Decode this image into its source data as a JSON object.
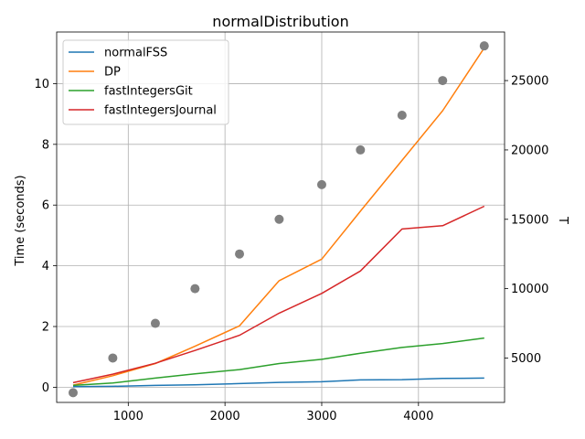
{
  "chart_data": {
    "type": "line",
    "title": "normalDistribution",
    "ylabel": "Time (seconds)",
    "y2label": "T",
    "xlim": [
      260,
      4890
    ],
    "ylim": [
      -0.5,
      11.7
    ],
    "y2lim": [
      1800,
      28500
    ],
    "x_ticks": [
      1000,
      2000,
      3000,
      4000
    ],
    "y_ticks": [
      0,
      2,
      4,
      6,
      8,
      10
    ],
    "y2_ticks": [
      5000,
      10000,
      15000,
      20000,
      25000
    ],
    "grid": true,
    "legend_position": "top-left",
    "x": [
      430,
      840,
      1280,
      1690,
      2150,
      2560,
      3000,
      3400,
      3830,
      4250,
      4680
    ],
    "series": [
      {
        "name": "normalFSS",
        "color": "#1f77b4",
        "values": [
          0.02,
          0.03,
          0.06,
          0.08,
          0.12,
          0.16,
          0.18,
          0.24,
          0.25,
          0.29,
          0.3
        ]
      },
      {
        "name": "DP",
        "color": "#ff7f0e",
        "values": [
          0.07,
          0.38,
          0.78,
          1.35,
          2.02,
          3.51,
          4.22,
          5.8,
          7.47,
          9.11,
          11.18
        ]
      },
      {
        "name": "fastIntegersGit",
        "color": "#2ca02c",
        "values": [
          0.06,
          0.14,
          0.3,
          0.44,
          0.58,
          0.78,
          0.92,
          1.12,
          1.31,
          1.44,
          1.62
        ]
      },
      {
        "name": "fastIntegersJournal",
        "color": "#d62728",
        "values": [
          0.15,
          0.43,
          0.79,
          1.21,
          1.71,
          2.44,
          3.09,
          3.83,
          5.21,
          5.32,
          5.96
        ]
      }
    ],
    "secondary_scatter": {
      "color": "#808080",
      "x": [
        430,
        840,
        1280,
        1690,
        2150,
        2560,
        3000,
        3400,
        3830,
        4250,
        4680
      ],
      "values": [
        2500,
        5000,
        7500,
        10000,
        12500,
        15000,
        17500,
        20000,
        22500,
        25000,
        27500
      ]
    }
  }
}
